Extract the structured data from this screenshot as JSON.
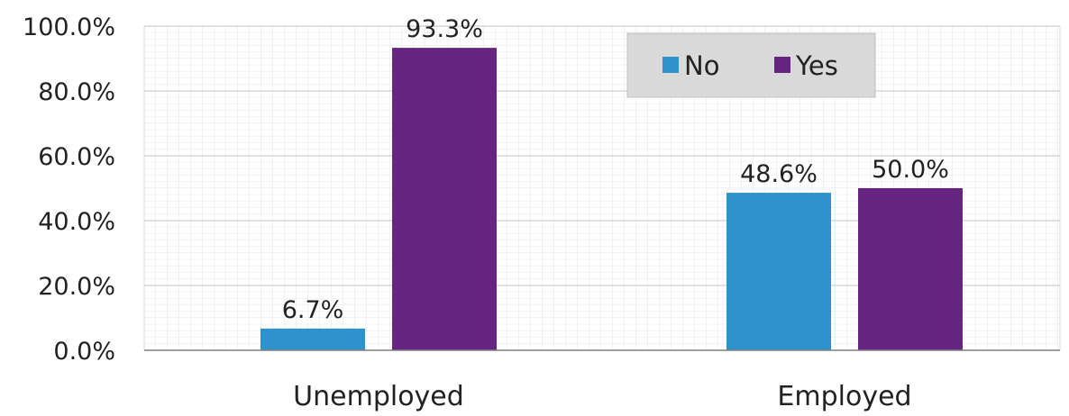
{
  "chart_data": {
    "type": "bar",
    "categories": [
      "Unemployed",
      "Employed"
    ],
    "series": [
      {
        "name": "No",
        "values": [
          6.7,
          48.6
        ],
        "labels": [
          "6.7%",
          "48.6%"
        ]
      },
      {
        "name": "Yes",
        "values": [
          93.3,
          50.0
        ],
        "labels": [
          "93.3%",
          "50.0%"
        ]
      }
    ],
    "ylim": [
      0,
      100
    ],
    "yticks": [
      0,
      20,
      40,
      60,
      80,
      100
    ],
    "ytick_labels": [
      "0.0%",
      "20.0%",
      "40.0%",
      "60.0%",
      "80.0%",
      "100.0%"
    ],
    "title": "",
    "xlabel": "",
    "ylabel": "",
    "grid": true,
    "legend_position": "top-right",
    "colors": {
      "No": "#2e92cc",
      "Yes": "#652581"
    }
  }
}
